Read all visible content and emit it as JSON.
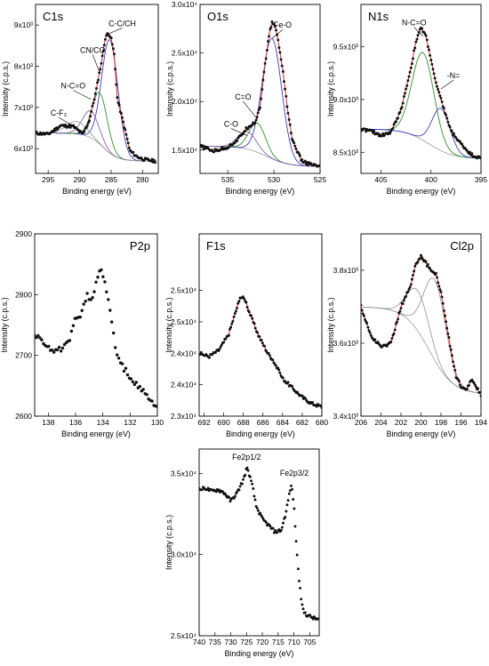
{
  "chart_data": [
    {
      "type": "scatter",
      "title": "C1s",
      "xlabel": "Binding energy (eV)",
      "ylabel": "Intensity (c.p.s.)",
      "xlim": [
        297,
        277.5
      ],
      "ylim": [
        5400,
        9500
      ],
      "x_reversed": true,
      "grid": false,
      "xticks": [
        295,
        290,
        285,
        280
      ],
      "xtick_labels": [
        "295",
        "290",
        "285",
        "280"
      ],
      "yticks": [
        6000,
        7000,
        8000,
        9000
      ],
      "ytick_labels": [
        "6x10³",
        "7x10³",
        "8x10³",
        "9x10³"
      ],
      "measured": {
        "x": [
          297,
          295,
          293,
          291,
          289.5,
          288.5,
          287.5,
          286.5,
          286,
          285.5,
          285,
          284.5,
          284,
          283,
          282,
          281,
          280,
          279,
          278
        ],
        "y": [
          6380,
          6350,
          6560,
          6540,
          6350,
          6660,
          7320,
          8120,
          8620,
          8830,
          8680,
          8300,
          7200,
          6600,
          5950,
          5820,
          5750,
          5720,
          5700
        ]
      },
      "fit_components": [
        {
          "center": 285.2,
          "width": 1.3,
          "amp": 2750
        },
        {
          "center": 286.8,
          "width": 1.2,
          "amp": 1250
        },
        {
          "center": 288.2,
          "width": 1.3,
          "amp": 650
        },
        {
          "center": 290.5,
          "width": 1.6,
          "amp": 300
        }
      ],
      "component_colors": [
        "#3b3bc9",
        "#2f8f2f",
        "#8a5fb8",
        "#9a9a9a"
      ],
      "annotations": [
        {
          "label": "C-C/CH",
          "x": 285.2,
          "y": 8800
        },
        {
          "label": "CN/CO",
          "x": 286.8,
          "y": 7850
        },
        {
          "label": "N-C=O",
          "x": 288.2,
          "y": 7200
        },
        {
          "label": "C-F₃",
          "x": 290.5,
          "y": 6500
        }
      ]
    },
    {
      "type": "scatter",
      "title": "O1s",
      "xlabel": "Binding energy (eV)",
      "ylabel": "Intensity (c.p.s.)",
      "xlim": [
        538,
        525
      ],
      "ylim": [
        12600,
        30000
      ],
      "x_reversed": true,
      "grid": false,
      "xticks": [
        535,
        530,
        525
      ],
      "xtick_labels": [
        "535",
        "530",
        "525"
      ],
      "yticks": [
        15000,
        20000,
        25000,
        30000
      ],
      "ytick_labels": [
        "1.5x10⁴",
        "2.0x10⁴",
        "2.5x10⁴",
        "3.0x10⁴"
      ],
      "measured": {
        "x": [
          538,
          536.5,
          535,
          534,
          533,
          532.5,
          532,
          531.5,
          531,
          530.5,
          530.2,
          529.8,
          529.5,
          529,
          528.5,
          528,
          527,
          526,
          525
        ],
        "y": [
          15400,
          14900,
          15300,
          16000,
          17200,
          17600,
          17900,
          19500,
          23500,
          27000,
          28200,
          27600,
          26000,
          23000,
          19000,
          16000,
          13900,
          13500,
          13300
        ]
      },
      "fit_components": [
        {
          "center": 530.2,
          "width": 1.05,
          "amp": 12400
        },
        {
          "center": 531.8,
          "width": 0.9,
          "amp": 3000
        },
        {
          "center": 532.9,
          "width": 1.0,
          "amp": 1800
        }
      ],
      "component_colors": [
        "#3b3bc9",
        "#2f8f2f",
        "#8a5fb8"
      ],
      "annotations": [
        {
          "label": "Fe-O",
          "x": 530.2,
          "y": 26500
        },
        {
          "label": "C=O",
          "x": 531.8,
          "y": 18200
        },
        {
          "label": "C-O",
          "x": 532.9,
          "y": 16500
        }
      ]
    },
    {
      "type": "scatter",
      "title": "N1s",
      "xlabel": "Binding energy (eV)",
      "ylabel": "Intensity (c.p.s.)",
      "xlim": [
        407,
        395
      ],
      "ylim": [
        8300,
        9900
      ],
      "x_reversed": true,
      "grid": false,
      "xticks": [
        405,
        400,
        395
      ],
      "xtick_labels": [
        "405",
        "400",
        "395"
      ],
      "yticks": [
        8500,
        9000,
        9500
      ],
      "ytick_labels": [
        "8.5x10³",
        "9.0x10³",
        "9.5x10³"
      ],
      "measured": {
        "x": [
          407,
          406,
          405,
          404,
          403,
          402,
          401.5,
          401,
          400.5,
          400,
          399.5,
          399,
          398.5,
          398,
          397,
          396,
          395
        ],
        "y": [
          8720,
          8700,
          8660,
          8690,
          8900,
          9300,
          9550,
          9680,
          9600,
          9380,
          9150,
          9000,
          8850,
          8700,
          8580,
          8480,
          8440
        ]
      },
      "fit_components": [
        {
          "center": 400.8,
          "width": 1.1,
          "amp": 830
        },
        {
          "center": 399.0,
          "width": 0.9,
          "amp": 400
        }
      ],
      "component_colors": [
        "#2f8f2f",
        "#3b3bc9"
      ],
      "annotations": [
        {
          "label": "N-C=O",
          "x": 400.8,
          "y": 9600
        },
        {
          "label": "-N=",
          "x": 399.0,
          "y": 9100
        }
      ]
    },
    {
      "type": "scatter",
      "title": "P2p",
      "xlabel": "Binding energy (eV)",
      "ylabel": "Intensity (c.p.s.)",
      "xlim": [
        139,
        130
      ],
      "ylim": [
        2600,
        2900
      ],
      "x_reversed": true,
      "grid": false,
      "xticks": [
        138,
        136,
        134,
        132,
        130
      ],
      "xtick_labels": [
        "138",
        "136",
        "134",
        "132",
        "130"
      ],
      "yticks": [
        2600,
        2700,
        2800,
        2900
      ],
      "ytick_labels": [
        "2600",
        "2700",
        "2800",
        "2900"
      ],
      "measured": {
        "x": [
          139,
          138.5,
          138,
          137.5,
          137,
          136.5,
          136,
          135.5,
          135.2,
          134.8,
          134.5,
          134.2,
          134,
          133.8,
          133.5,
          133,
          132.5,
          132,
          131.5,
          131,
          130.5,
          130
        ],
        "y": [
          2735,
          2725,
          2715,
          2705,
          2712,
          2720,
          2760,
          2770,
          2800,
          2790,
          2820,
          2840,
          2835,
          2810,
          2780,
          2700,
          2680,
          2665,
          2650,
          2640,
          2625,
          2615
        ]
      },
      "fit_components": [],
      "component_colors": [],
      "annotations": []
    },
    {
      "type": "scatter",
      "title": "F1s",
      "xlabel": "Binding energy (eV)",
      "ylabel": "Intensity (c.p.s.)",
      "xlim": [
        692.5,
        680
      ],
      "ylim": [
        23000,
        25900
      ],
      "x_reversed": true,
      "grid": false,
      "xticks": [
        692,
        690,
        688,
        686,
        684,
        682,
        680
      ],
      "xtick_labels": [
        "692",
        "690",
        "688",
        "686",
        "684",
        "682",
        "680"
      ],
      "yticks": [
        23000,
        24000,
        25000
      ],
      "ytick_labels": [
        "2.3x10⁴",
        "2.4x10⁴",
        "2.5x10⁴"
      ],
      "extra_yticks": [
        {
          "value": 23500,
          "label": "2.4x10⁴"
        },
        {
          "value": 24500,
          "label": "2.5x10⁴"
        }
      ],
      "measured": {
        "x": [
          692.5,
          691.5,
          690.5,
          689.5,
          689,
          688.5,
          688.2,
          687.8,
          687.5,
          687,
          686.5,
          686,
          685.5,
          685,
          684.5,
          684,
          683,
          682,
          681,
          680
        ],
        "y": [
          24000,
          23950,
          24050,
          24300,
          24550,
          24800,
          24900,
          24850,
          24700,
          24500,
          24300,
          24150,
          24000,
          23900,
          23750,
          23600,
          23450,
          23300,
          23200,
          23150
        ]
      },
      "fit_components": [],
      "component_colors": [],
      "annotations": []
    },
    {
      "type": "scatter",
      "title": "Cl2p",
      "xlabel": "Binding energy (eV)",
      "ylabel": "Intensity (c.p.s.)",
      "xlim": [
        206,
        194
      ],
      "ylim": [
        3400,
        3900
      ],
      "x_reversed": true,
      "grid": false,
      "xticks": [
        206,
        204,
        202,
        200,
        198,
        196,
        194
      ],
      "xtick_labels": [
        "206",
        "204",
        "202",
        "200",
        "198",
        "196",
        "194"
      ],
      "yticks": [
        3400,
        3600,
        3800
      ],
      "ytick_labels": [
        "3.4x10³",
        "3.6x10³",
        "3.8x10³"
      ],
      "measured": {
        "x": [
          206,
          205,
          204,
          203,
          202.5,
          202,
          201,
          200.5,
          200,
          199.5,
          199,
          198.5,
          198,
          197.5,
          197,
          196.5,
          196,
          195.5,
          195,
          194.5,
          194
        ],
        "y": [
          3700,
          3620,
          3590,
          3600,
          3650,
          3700,
          3760,
          3820,
          3840,
          3820,
          3800,
          3790,
          3740,
          3660,
          3580,
          3510,
          3480,
          3470,
          3500,
          3480,
          3460
        ]
      },
      "fit_components": [
        {
          "center": 198.6,
          "width": 1.1,
          "amp": 220
        },
        {
          "center": 200.3,
          "width": 1.1,
          "amp": 110
        }
      ],
      "component_colors": [
        "#9a9a9a",
        "#9a9a9a"
      ],
      "annotations": []
    },
    {
      "type": "scatter",
      "title": "",
      "xlabel": "Binding energy (eV)",
      "ylabel": "Intensity (c.p.s.)",
      "xlim": [
        740,
        702
      ],
      "ylim": [
        25000,
        36500
      ],
      "x_reversed": true,
      "grid": false,
      "xticks": [
        740,
        735,
        730,
        725,
        720,
        715,
        710,
        705
      ],
      "xtick_labels": [
        "740",
        "735",
        "730",
        "725",
        "720",
        "715",
        "710",
        "705"
      ],
      "yticks": [
        25000,
        30000,
        35000
      ],
      "ytick_labels": [
        "2.5x10⁴",
        "3.0x10⁴",
        "3.5x10⁴"
      ],
      "measured": {
        "x": [
          740,
          738,
          736,
          734,
          732,
          730,
          728,
          726,
          725,
          724.5,
          723,
          722,
          720,
          718,
          716,
          714,
          712.5,
          711.5,
          711,
          710.5,
          710,
          709.5,
          709,
          708.5,
          708,
          707.5,
          707,
          706,
          705,
          704,
          703,
          702
        ],
        "y": [
          34000,
          34100,
          33900,
          34000,
          33800,
          33300,
          33800,
          34600,
          35300,
          35200,
          34100,
          33000,
          32200,
          31800,
          31400,
          31500,
          32600,
          33700,
          34200,
          34000,
          33000,
          31500,
          30000,
          28800,
          27800,
          27000,
          26500,
          26300,
          26200,
          26100,
          26050,
          26000
        ]
      },
      "fit_components": [],
      "component_colors": [],
      "annotations": [
        {
          "label": "Fe2p1/2",
          "x": 725,
          "y": 35300
        },
        {
          "label": "Fe2p3/2",
          "x": 711,
          "y": 34200
        }
      ]
    }
  ],
  "style": {
    "point_color": "#111111",
    "envelope_color": "#e32a24",
    "background_color": "#9a9a9a"
  }
}
